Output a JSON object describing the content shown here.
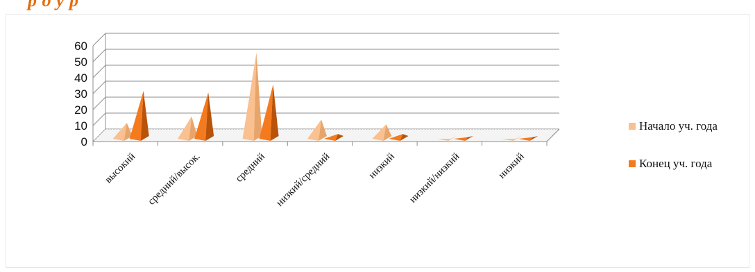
{
  "title_fragment": "р                                                     д                                               у                                          р",
  "colors": {
    "series1": "#fac090",
    "series1_dark": "#e8a56b",
    "series2": "#f47a1e",
    "series2_dark": "#b9530a",
    "grid": "#8c8c8c",
    "title": "#e46c0a"
  },
  "chart_data": {
    "type": "bar",
    "style": "3d-pyramid",
    "categories": [
      "высокий",
      "средний/высок.",
      "средний",
      "низкий/средний",
      "низкий",
      "низкий/низкий",
      "низкий"
    ],
    "series": [
      {
        "name": "Начало уч. года",
        "values": [
          10,
          14,
          54,
          12,
          9,
          0,
          0
        ]
      },
      {
        "name": "Конец уч. года",
        "values": [
          30,
          29,
          34,
          3,
          3,
          1,
          1
        ]
      }
    ],
    "yticks": [
      "0",
      "10",
      "20",
      "30",
      "40",
      "50",
      "60"
    ],
    "ylim": [
      0,
      60
    ],
    "grid": true,
    "legend": "right"
  }
}
